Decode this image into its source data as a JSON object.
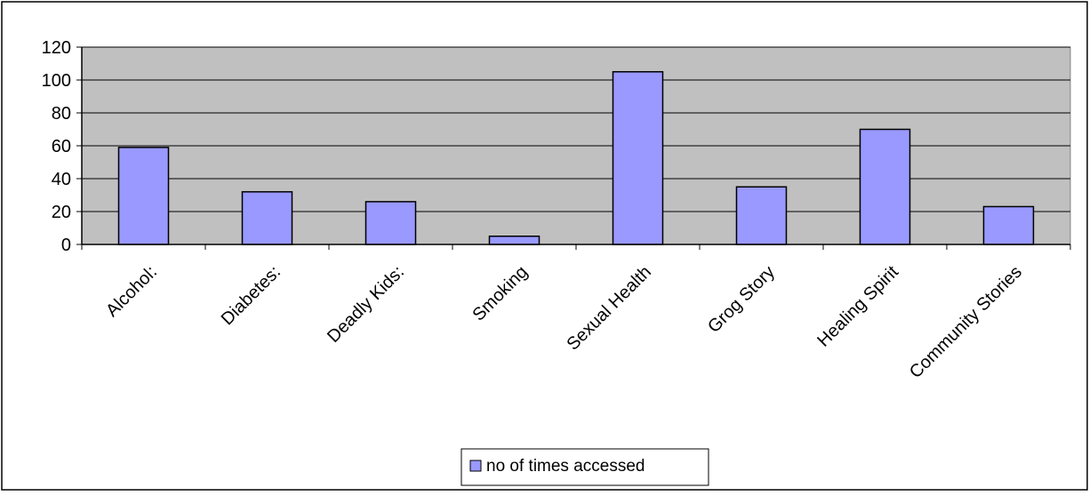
{
  "chart_data": {
    "type": "bar",
    "title": "",
    "xlabel": "",
    "ylabel": "",
    "categories": [
      "Alcohol:",
      "Diabetes:",
      "Deadly Kids:",
      "Smoking",
      "Sexual Health",
      "Grog Story",
      "Healing Spirit",
      "Community Stories"
    ],
    "series": [
      {
        "name": "no of times accessed",
        "values": [
          59,
          32,
          26,
          5,
          105,
          35,
          70,
          23
        ]
      }
    ],
    "ylim": [
      0,
      120
    ],
    "yticks": [
      0,
      20,
      40,
      60,
      80,
      100,
      120
    ],
    "grid": true,
    "legend": "bottom",
    "colors": {
      "bar": "#9999ff",
      "plot_bg": "#c0c0c0",
      "gridline": "#000000",
      "axis": "#000000"
    }
  }
}
